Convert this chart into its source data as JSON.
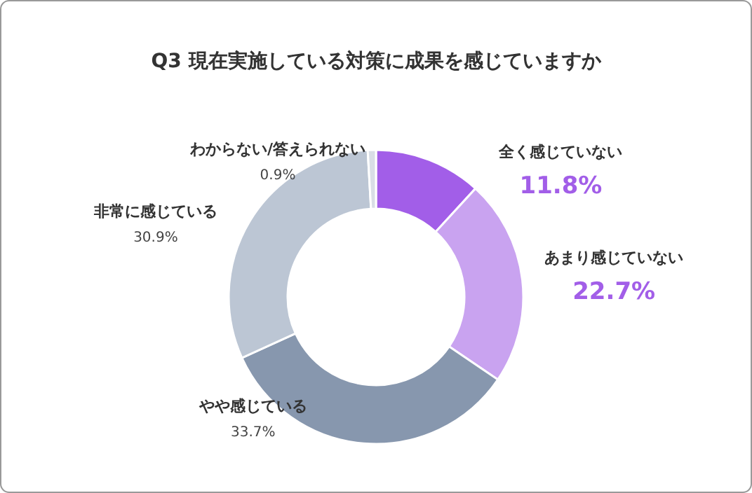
{
  "chart_data": {
    "type": "donut",
    "title": "Q3 現在実施している対策に成果を感じていますか",
    "categories": [
      "全く感じていない",
      "あまり感じていない",
      "やや感じている",
      "非常に感じている",
      "わからない/答えられない"
    ],
    "values": [
      11.8,
      22.7,
      33.7,
      30.9,
      0.9
    ],
    "colors": [
      "#a25ee8",
      "#c9a3f0",
      "#8797ae",
      "#bcc6d4",
      "#d9dee6"
    ],
    "value_labels": [
      "11.8%",
      "22.7%",
      "33.7%",
      "30.9%",
      "0.9%"
    ],
    "legend": false
  }
}
